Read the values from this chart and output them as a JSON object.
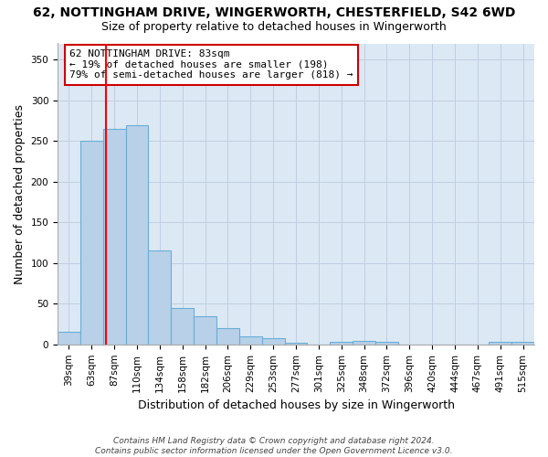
{
  "title": "62, NOTTINGHAM DRIVE, WINGERWORTH, CHESTERFIELD, S42 6WD",
  "subtitle": "Size of property relative to detached houses in Wingerworth",
  "xlabel": "Distribution of detached houses by size in Wingerworth",
  "ylabel": "Number of detached properties",
  "bin_labels": [
    "39sqm",
    "63sqm",
    "87sqm",
    "110sqm",
    "134sqm",
    "158sqm",
    "182sqm",
    "206sqm",
    "229sqm",
    "253sqm",
    "277sqm",
    "301sqm",
    "325sqm",
    "348sqm",
    "372sqm",
    "396sqm",
    "420sqm",
    "444sqm",
    "467sqm",
    "491sqm",
    "515sqm"
  ],
  "bar_heights": [
    16,
    250,
    265,
    270,
    115,
    45,
    35,
    20,
    10,
    8,
    2,
    0,
    3,
    4,
    3,
    0,
    0,
    0,
    0,
    3,
    3
  ],
  "bar_color": "#b8d0e8",
  "bar_edge_color": "#6aaed6",
  "red_line_x": 1.65,
  "annotation_text": "62 NOTTINGHAM DRIVE: 83sqm\n← 19% of detached houses are smaller (198)\n79% of semi-detached houses are larger (818) →",
  "annotation_box_color": "#ffffff",
  "annotation_border_color": "#cc0000",
  "ylim": [
    0,
    370
  ],
  "yticks": [
    0,
    50,
    100,
    150,
    200,
    250,
    300,
    350
  ],
  "footnote": "Contains HM Land Registry data © Crown copyright and database right 2024.\nContains public sector information licensed under the Open Government Licence v3.0.",
  "background_color": "#ffffff",
  "plot_bg_color": "#dce9f5",
  "grid_color": "#c0cfe0",
  "title_fontsize": 10,
  "subtitle_fontsize": 9,
  "axis_label_fontsize": 9,
  "tick_fontsize": 7.5,
  "annotation_fontsize": 8,
  "footnote_fontsize": 6.5
}
